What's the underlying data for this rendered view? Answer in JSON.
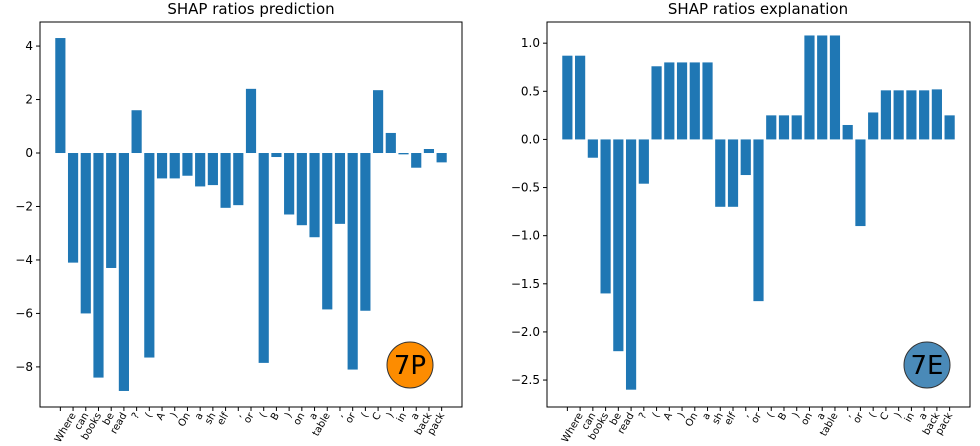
{
  "chart_data": [
    {
      "type": "bar",
      "title": "SHAP ratios prediction",
      "xlabel": "",
      "ylabel": "",
      "ylim": [
        -9.5,
        4.9
      ],
      "yticks": [
        4,
        2,
        0,
        -2,
        -4,
        -6,
        -8
      ],
      "ytick_labels": [
        "4",
        "2",
        "0",
        "−2",
        "−4",
        "−6",
        "−8"
      ],
      "categories": [
        "",
        "Where",
        "can",
        "books",
        "be",
        "read",
        "?",
        "(",
        "A",
        ")",
        "On",
        "a",
        "sh",
        "elf",
        ",",
        "or",
        "(",
        "B",
        ")",
        "on",
        "a",
        "table",
        ",",
        "or",
        "(",
        "C",
        ")",
        "in",
        "a",
        "back",
        "pack"
      ],
      "values": [
        4.3,
        -4.1,
        -6.0,
        -8.4,
        -4.3,
        -8.9,
        1.6,
        -7.65,
        -0.95,
        -0.95,
        -0.85,
        -1.25,
        -1.2,
        -2.05,
        -1.95,
        2.4,
        -7.85,
        -0.15,
        -2.3,
        -2.7,
        -3.15,
        -5.85,
        -2.65,
        -8.1,
        -5.9,
        2.35,
        0.75,
        -0.05,
        -0.55,
        0.15,
        -0.35
      ],
      "color": "#1f77b4",
      "grid": false,
      "badge": {
        "label": "7P",
        "color": "#fd8c00"
      }
    },
    {
      "type": "bar",
      "title": "SHAP ratios explanation",
      "xlabel": "",
      "ylabel": "",
      "ylim": [
        -2.78,
        1.22
      ],
      "yticks": [
        1.0,
        0.5,
        0.0,
        -0.5,
        -1.0,
        -1.5,
        -2.0,
        -2.5
      ],
      "ytick_labels": [
        "1.0",
        "0.5",
        "0.0",
        "−0.5",
        "−1.0",
        "−1.5",
        "−2.0",
        "−2.5"
      ],
      "categories": [
        "",
        "Where",
        "can",
        "books",
        "be",
        "read",
        "?",
        "(",
        "A",
        ")",
        "On",
        "a",
        "sh",
        "elf",
        ",",
        "or",
        "(",
        "B",
        ")",
        "on",
        "a",
        "table",
        ",",
        "or",
        "(",
        "C",
        ")",
        "in",
        "a",
        "back",
        "pack"
      ],
      "values": [
        0.87,
        0.87,
        -0.19,
        -1.6,
        -2.2,
        -2.6,
        -0.46,
        0.76,
        0.8,
        0.8,
        0.8,
        0.8,
        -0.7,
        -0.7,
        -0.37,
        -1.68,
        0.25,
        0.25,
        0.25,
        1.08,
        1.08,
        1.08,
        0.15,
        -0.9,
        0.28,
        0.51,
        0.51,
        0.51,
        0.51,
        0.52,
        0.25
      ],
      "color": "#1f77b4",
      "grid": false,
      "badge": {
        "label": "7E",
        "color": "#4a8ab8"
      }
    }
  ]
}
